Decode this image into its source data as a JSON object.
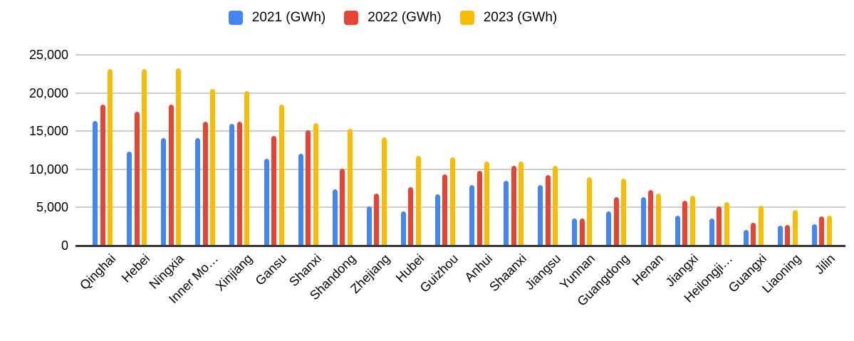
{
  "legend": {
    "items": [
      {
        "label": "2021 (GWh)",
        "color": "#4285F4"
      },
      {
        "label": "2022 (GWh)",
        "color": "#EA4335"
      },
      {
        "label": "2023 (GWh)",
        "color": "#FBBC04"
      }
    ]
  },
  "chart_data": {
    "type": "bar",
    "title": "",
    "categories": [
      "Qinghai",
      "Hebei",
      "Ningxia",
      "Inner Mo…",
      "Xinjiang",
      "Gansu",
      "Shanxi",
      "Shandong",
      "Zhejiang",
      "Hubei",
      "Guizhou",
      "Anhui",
      "Shaanxi",
      "Jiangsu",
      "Yunnan",
      "Guangdong",
      "Henan",
      "Jiangxi",
      "Heilongji…",
      "Guangxi",
      "Liaoning",
      "Jilin"
    ],
    "series": [
      {
        "name": "2021 (GWh)",
        "color": "#4285F4",
        "values": [
          16300,
          12300,
          14050,
          14050,
          15950,
          11350,
          12050,
          7350,
          5150,
          4500,
          6750,
          7950,
          8450,
          7900,
          3500,
          4500,
          6350,
          3900,
          3550,
          2050,
          2600,
          2800
        ]
      },
      {
        "name": "2022 (GWh)",
        "color": "#EA4335",
        "values": [
          18450,
          17550,
          18500,
          16250,
          16250,
          14400,
          15150,
          10050,
          6800,
          7650,
          9350,
          9800,
          10450,
          9200,
          3550,
          6300,
          7300,
          5850,
          5100,
          3000,
          2700,
          3800
        ]
      },
      {
        "name": "2023 (GWh)",
        "color": "#FBBC04",
        "values": [
          23150,
          23150,
          23200,
          20550,
          20200,
          18450,
          16050,
          15300,
          14200,
          11800,
          11600,
          11050,
          11000,
          10450,
          9000,
          8800,
          6800,
          6550,
          5650,
          5200,
          4700,
          3950
        ]
      }
    ],
    "y_ticks": [
      "25,000",
      "20,000",
      "15,000",
      "10,000",
      "5,000",
      "0"
    ],
    "ylim": [
      0,
      25000
    ],
    "grid": true,
    "legend_position": "top",
    "x_label_rotation_deg": -45
  }
}
